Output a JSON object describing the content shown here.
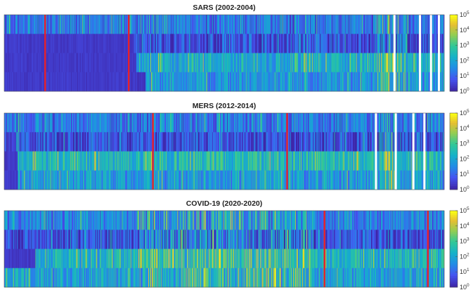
{
  "chart_data": [
    {
      "type": "heatmap",
      "title": "SARS (2002-2004)",
      "rows": 4,
      "columns": 620,
      "color_scale": "log",
      "clim": [
        1,
        100000
      ],
      "colorbar_ticks": [
        {
          "base": "10",
          "exp": "0"
        },
        {
          "base": "10",
          "exp": "1"
        },
        {
          "base": "10",
          "exp": "2"
        },
        {
          "base": "10",
          "exp": "3"
        },
        {
          "base": "10",
          "exp": "4"
        },
        {
          "base": "10",
          "exp": "5"
        }
      ],
      "red_separators": [
        0.093,
        0.283
      ],
      "white_gaps": [
        0.887,
        0.945,
        0.97,
        0.988
      ],
      "row_base_log10": [
        1.1,
        0.5,
        2.1,
        1.6
      ],
      "row_dark_until": [
        0,
        0.295,
        0.3,
        0.32
      ],
      "bright_zone": [
        0.84,
        0.92
      ]
    },
    {
      "type": "heatmap",
      "title": "MERS (2012-2014)",
      "rows": 4,
      "columns": 620,
      "color_scale": "log",
      "clim": [
        1,
        100000
      ],
      "colorbar_ticks": [
        {
          "base": "10",
          "exp": "0"
        },
        {
          "base": "10",
          "exp": "1"
        },
        {
          "base": "10",
          "exp": "2"
        },
        {
          "base": "10",
          "exp": "3"
        },
        {
          "base": "10",
          "exp": "4"
        },
        {
          "base": "10",
          "exp": "5"
        }
      ],
      "red_separators": [
        0.338,
        0.643
      ],
      "white_gaps": [
        0.845,
        0.89,
        0.93,
        0.955
      ],
      "row_base_log10": [
        1.1,
        0.5,
        2.3,
        1.7
      ],
      "row_dark_until": [
        0,
        0.0,
        0.03,
        0.03
      ],
      "bright_zone": [
        0.85,
        0.89
      ]
    },
    {
      "type": "heatmap",
      "title": "COVID-19 (2020-2020)",
      "rows": 4,
      "columns": 620,
      "color_scale": "log",
      "clim": [
        1,
        100000
      ],
      "colorbar_ticks": [
        {
          "base": "10",
          "exp": "0"
        },
        {
          "base": "10",
          "exp": "1"
        },
        {
          "base": "10",
          "exp": "2"
        },
        {
          "base": "10",
          "exp": "3"
        },
        {
          "base": "10",
          "exp": "4"
        },
        {
          "base": "10",
          "exp": "5"
        }
      ],
      "red_separators": [
        0.728,
        0.963
      ],
      "white_gaps": [],
      "row_base_log10": [
        1.3,
        0.5,
        2.2,
        1.8
      ],
      "row_dark_until": [
        0,
        0.0,
        0.07,
        0.0
      ],
      "bright_zone": [
        0.3,
        0.7
      ]
    }
  ]
}
